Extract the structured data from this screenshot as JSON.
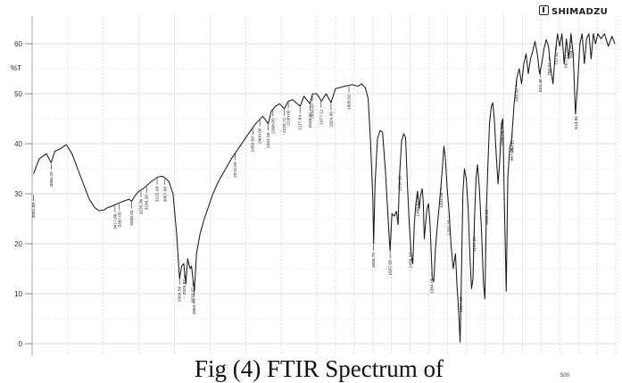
{
  "header": {
    "brand": "SHIMADZU",
    "logo_icon": "shimadzu-logo-icon"
  },
  "caption": "Fig (4)  FTIR Spectrum of",
  "corner_tick": "500",
  "chart_data": {
    "type": "line",
    "title": "",
    "xlabel": "",
    "ylabel": "%T",
    "y_ticks": [
      0,
      10,
      20,
      30,
      40,
      50,
      60
    ],
    "ylim": [
      -2,
      62
    ],
    "xlim": [
      4000,
      400
    ],
    "x_scale": "linear (1/cm, decreasing), split at 2000 1/cm",
    "grid": true,
    "line_color": "#1a1a1a",
    "series": [
      {
        "name": "",
        "points": [
          [
            3990,
            34
          ],
          [
            3950,
            37
          ],
          [
            3900,
            38
          ],
          [
            3866.2,
            36.2
          ],
          [
            3840,
            38.5
          ],
          [
            3800,
            39
          ],
          [
            3760,
            39.8
          ],
          [
            3720,
            38
          ],
          [
            3680,
            35
          ],
          [
            3640,
            32
          ],
          [
            3600,
            29
          ],
          [
            3560,
            27.2
          ],
          [
            3530,
            26.6
          ],
          [
            3500,
            26.7
          ],
          [
            3470,
            27.2
          ],
          [
            3440,
            27.5
          ],
          [
            3400,
            28
          ],
          [
            3360,
            28.5
          ],
          [
            3320,
            28.9
          ],
          [
            3300,
            28.5
          ],
          [
            3280,
            29.5
          ],
          [
            3250,
            30.5
          ],
          [
            3220,
            31
          ],
          [
            3200,
            31.5
          ],
          [
            3160,
            32.5
          ],
          [
            3120,
            33.3
          ],
          [
            3090,
            33.5
          ],
          [
            3067,
            33.2
          ],
          [
            3040,
            32.5
          ],
          [
            3010,
            30
          ],
          [
            2985,
            22
          ],
          [
            2964,
            13
          ],
          [
            2950,
            15.5
          ],
          [
            2935,
            16
          ],
          [
            2920,
            12
          ],
          [
            2907,
            17
          ],
          [
            2890,
            15
          ],
          [
            2880,
            15.5
          ],
          [
            2860,
            10.5
          ],
          [
            2845,
            18
          ],
          [
            2820,
            22
          ],
          [
            2790,
            25
          ],
          [
            2760,
            27.5
          ],
          [
            2730,
            30
          ],
          [
            2690,
            32.5
          ],
          [
            2640,
            35
          ],
          [
            2600,
            37
          ],
          [
            2540,
            39.5
          ],
          [
            2480,
            42
          ],
          [
            2430,
            44
          ],
          [
            2380,
            45.5
          ],
          [
            2341,
            44
          ],
          [
            2320,
            46.5
          ],
          [
            2290,
            47.5
          ],
          [
            2260,
            48
          ],
          [
            2229,
            47
          ],
          [
            2200,
            48.5
          ],
          [
            2170,
            48.8
          ],
          [
            2117,
            47.5
          ],
          [
            2090,
            49.5
          ],
          [
            2048,
            48
          ],
          [
            2030,
            50
          ],
          [
            2000,
            50
          ],
          [
            1975,
            48.5
          ],
          [
            1950,
            50
          ],
          [
            1924,
            48.2
          ],
          [
            1900,
            51
          ],
          [
            1870,
            51.3
          ],
          [
            1840,
            51.6
          ],
          [
            1810,
            51.8
          ],
          [
            1780,
            51.5
          ],
          [
            1760,
            52
          ],
          [
            1740,
            51.2
          ],
          [
            1725,
            49
          ],
          [
            1712,
            40
          ],
          [
            1700,
            29
          ],
          [
            1695.8,
            20
          ],
          [
            1688,
            32
          ],
          [
            1675,
            41
          ],
          [
            1662,
            42.6
          ],
          [
            1648,
            42.3
          ],
          [
            1632,
            34
          ],
          [
            1620,
            26
          ],
          [
            1607.7,
            18.5
          ],
          [
            1598,
            26
          ],
          [
            1586,
            25.5
          ],
          [
            1574,
            26.5
          ],
          [
            1565,
            23.8
          ],
          [
            1557,
            34
          ],
          [
            1546,
            40.6
          ],
          [
            1535,
            42
          ],
          [
            1525,
            41.2
          ],
          [
            1515,
            32
          ],
          [
            1505,
            24
          ],
          [
            1495,
            18
          ],
          [
            1486,
            16
          ],
          [
            1478,
            24
          ],
          [
            1470,
            28
          ],
          [
            1461,
            30.5
          ],
          [
            1452,
            27
          ],
          [
            1445,
            29.5
          ],
          [
            1436,
            31
          ],
          [
            1430,
            28.5
          ],
          [
            1425,
            21
          ],
          [
            1418,
            24
          ],
          [
            1410,
            27
          ],
          [
            1402,
            28
          ],
          [
            1394,
            24
          ],
          [
            1382,
            13
          ],
          [
            1374,
            12.5
          ],
          [
            1365,
            19
          ],
          [
            1356,
            23
          ],
          [
            1346,
            27
          ],
          [
            1338,
            30.5
          ],
          [
            1328,
            35
          ],
          [
            1320,
            39.5
          ],
          [
            1312,
            37
          ],
          [
            1302,
            31
          ],
          [
            1291,
            26
          ],
          [
            1282,
            20
          ],
          [
            1270,
            15
          ],
          [
            1258,
            18
          ],
          [
            1250,
            12
          ],
          [
            1240,
            6
          ],
          [
            1233,
            0.3
          ],
          [
            1226,
            14
          ],
          [
            1218,
            30
          ],
          [
            1210,
            35
          ],
          [
            1200,
            33
          ],
          [
            1190,
            27
          ],
          [
            1180,
            17
          ],
          [
            1172,
            11
          ],
          [
            1164,
            13
          ],
          [
            1156,
            25
          ],
          [
            1148,
            33
          ],
          [
            1140,
            35.8
          ],
          [
            1130,
            31
          ],
          [
            1118,
            22
          ],
          [
            1108,
            12
          ],
          [
            1100,
            9
          ],
          [
            1092,
            27
          ],
          [
            1084,
            36
          ],
          [
            1076,
            44
          ],
          [
            1066,
            47.5
          ],
          [
            1058,
            48.2
          ],
          [
            1050,
            45
          ],
          [
            1040,
            38
          ],
          [
            1030,
            32
          ],
          [
            1022,
            36
          ],
          [
            1012,
            44
          ],
          [
            1004,
            45
          ],
          [
            996,
            28
          ],
          [
            986,
            10.5
          ],
          [
            978,
            33
          ],
          [
            968,
            39
          ],
          [
            957,
            41
          ],
          [
            944,
            48
          ],
          [
            930,
            53
          ],
          [
            917,
            55
          ],
          [
            904,
            52
          ],
          [
            892,
            56
          ],
          [
            880,
            58
          ],
          [
            868,
            54
          ],
          [
            856,
            57
          ],
          [
            844,
            58.5
          ],
          [
            832,
            60.5
          ],
          [
            820,
            58
          ],
          [
            808,
            54
          ],
          [
            796,
            56
          ],
          [
            784,
            59
          ],
          [
            772,
            60.8
          ],
          [
            760,
            59.5
          ],
          [
            748,
            55
          ],
          [
            736,
            52
          ],
          [
            724,
            58
          ],
          [
            712,
            62
          ],
          [
            700,
            59.5
          ],
          [
            688,
            62
          ],
          [
            676,
            56
          ],
          [
            664,
            61
          ],
          [
            652,
            57
          ],
          [
            640,
            62
          ],
          [
            628,
            58
          ],
          [
            616,
            46
          ],
          [
            604,
            52
          ],
          [
            592,
            60
          ],
          [
            580,
            62
          ],
          [
            568,
            56
          ],
          [
            556,
            61
          ],
          [
            544,
            62
          ],
          [
            532,
            57
          ],
          [
            520,
            62
          ],
          [
            508,
            60
          ],
          [
            496,
            62
          ],
          [
            480,
            61
          ],
          [
            460,
            62
          ],
          [
            440,
            59.5
          ],
          [
            420,
            61.5
          ],
          [
            405,
            60
          ]
        ]
      }
    ],
    "peak_labels": [
      "3991.88",
      "3866.20",
      "3417.86",
      "3387.00",
      "3300.00",
      "3235.36",
      "3196.28",
      "3122.00",
      "3067.00",
      "2964.59",
      "2929.87",
      "2860.79",
      "2870.07",
      "2573.00",
      "2450.00",
      "2400.00",
      "2341.58",
      "2308.00",
      "2229.71",
      "2200.00",
      "2117.94",
      "2048.00",
      "2030.87",
      "1977.11",
      "1924.06",
      "1828.02",
      "1695.79",
      "1607.68",
      "1554.63",
      "1498.33",
      "1460.52",
      "1384.05",
      "1334.58",
      "1292.15",
      "1227.45",
      "1157.20",
      "1090.56",
      "1008.84",
      "957.06",
      "930.50",
      "954.11",
      "803.38",
      "756.01",
      "717.52",
      "667.37",
      "638.75",
      "613.36"
    ],
    "annotations": []
  }
}
